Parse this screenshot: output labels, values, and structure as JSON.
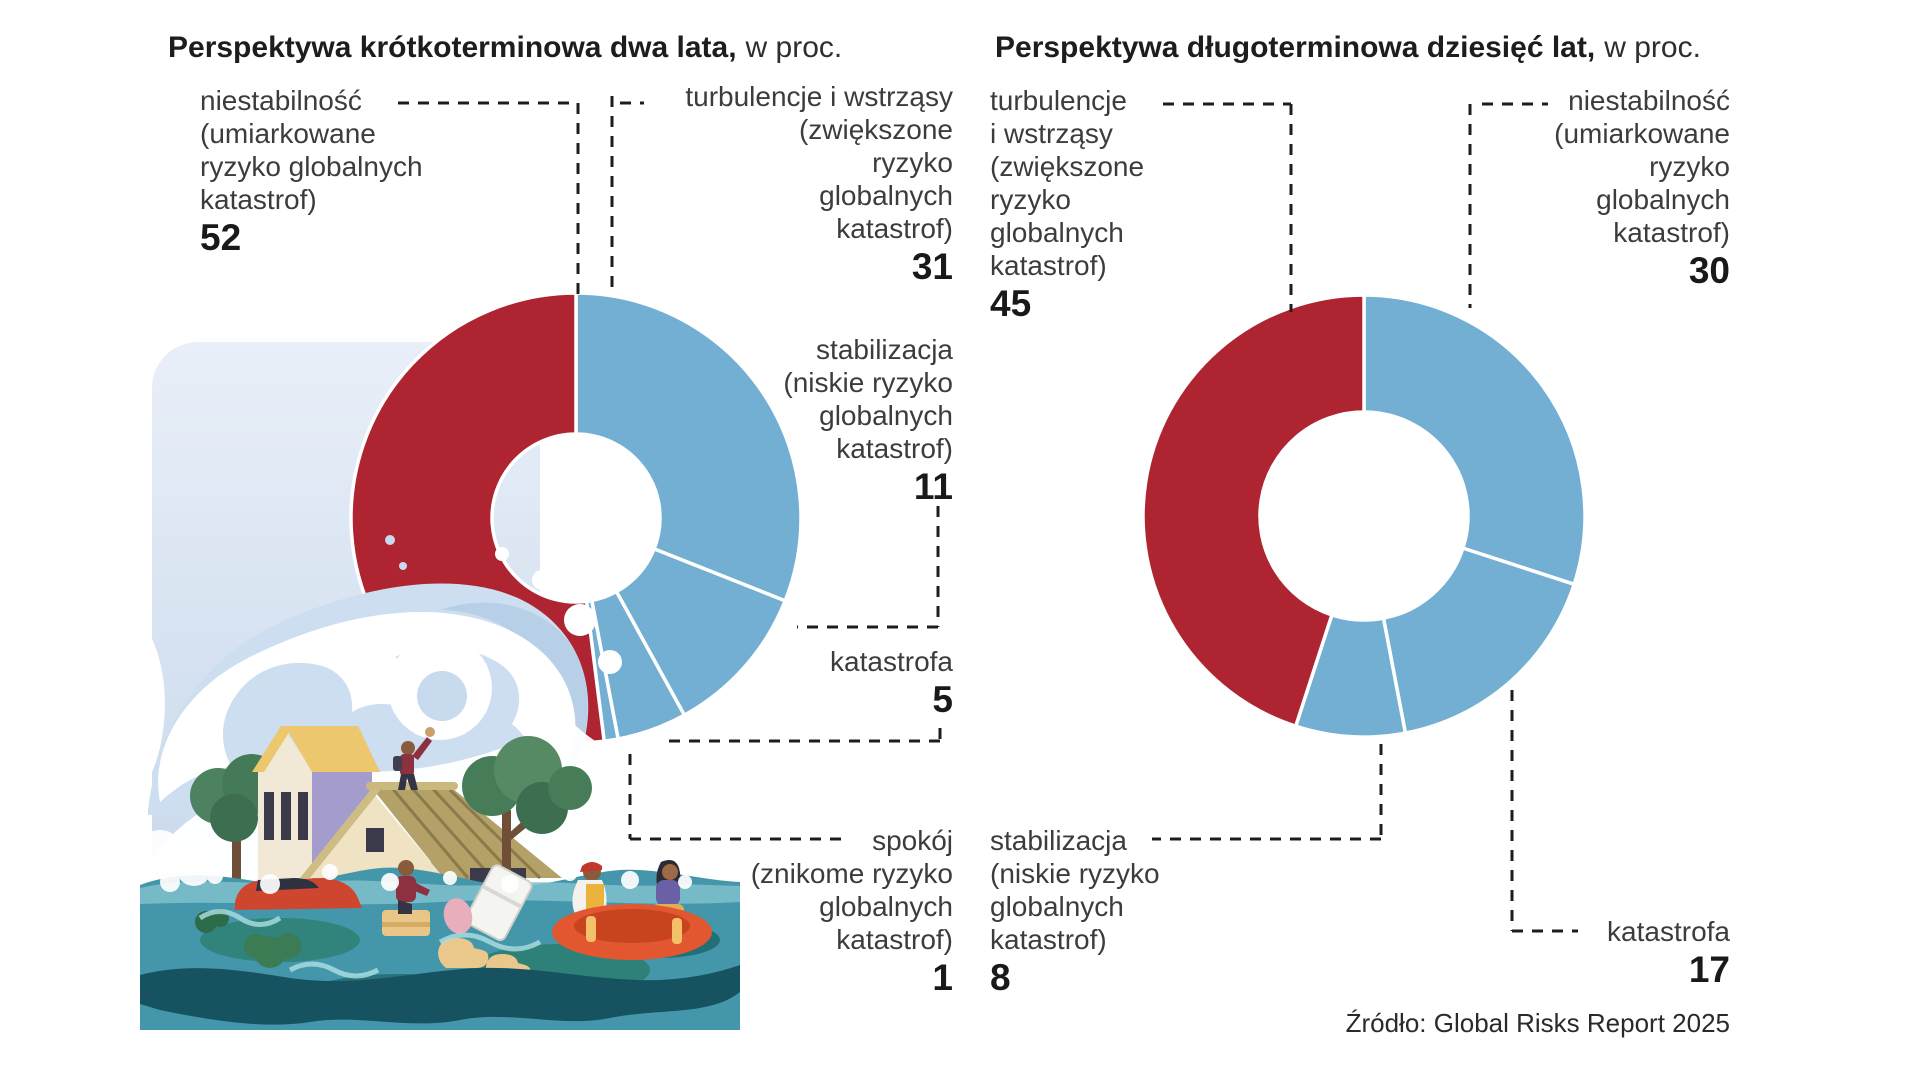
{
  "titles": {
    "left_bold": "Perspektywa krótkoterminowa dwa lata,",
    "left_unit": "w proc.",
    "right_bold": "Perspektywa długoterminowa dziesięć lat,",
    "right_unit": "w proc."
  },
  "source": "Źródło: Global Risks Report 2025",
  "colors": {
    "red": "#ae2430",
    "blue": "#73afd3",
    "leader": "#1d1d1b",
    "label_text": "#3c3c3c",
    "number_text": "#191919"
  },
  "left_chart": {
    "callouts": {
      "niestabilnosc": {
        "text": "niestabilność\n(umiarkowane\nryzyko globalnych\nkatastrof)",
        "value": "52"
      },
      "turbulencje": {
        "text": "turbulencje i wstrząsy\n(zwiększone\nryzyko\nglobalnych\nkatastrof)",
        "value": "31"
      },
      "stabilizacja": {
        "text": "stabilizacja\n(niskie ryzyko\nglobalnych\nkatastrof)",
        "value": "11"
      },
      "katastrofa": {
        "text": "katastrofa",
        "value": "5"
      },
      "spokoj": {
        "text": "spokój\n(znikome ryzyko\nglobalnych\nkatastrof)",
        "value": "1"
      }
    }
  },
  "right_chart": {
    "callouts": {
      "turbulencje": {
        "text": "turbulencje\ni wstrząsy\n(zwiększone\nryzyko\nglobalnych\nkatastrof)",
        "value": "45"
      },
      "niestabilnosc": {
        "text": "niestabilność\n(umiarkowane\nryzyko\nglobalnych\nkatastrof)",
        "value": "30"
      },
      "stabilizacja": {
        "text": "stabilizacja\n(niskie ryzyko\nglobalnych\nkatastrof)",
        "value": "8"
      },
      "katastrofa": {
        "text": "katastrofa",
        "value": "17"
      }
    }
  },
  "chart_data": [
    {
      "type": "pie",
      "variant": "donut",
      "title": "Perspektywa krótkoterminowa dwa lata, w proc.",
      "start_angle_deg": 0,
      "clockwise": true,
      "series": [
        {
          "key": "turbulencje",
          "name": "turbulencje i wstrząsy (zwiększone ryzyko globalnych katastrof)",
          "value": 31,
          "color": "#73afd3"
        },
        {
          "key": "stabilizacja",
          "name": "stabilizacja (niskie ryzyko globalnych katastrof)",
          "value": 11,
          "color": "#73afd3"
        },
        {
          "key": "katastrofa",
          "name": "katastrofa",
          "value": 5,
          "color": "#73afd3"
        },
        {
          "key": "spokoj",
          "name": "spokój (znikome ryzyko globalnych katastrof)",
          "value": 1,
          "color": "#73afd3"
        },
        {
          "key": "niestabilnosc",
          "name": "niestabilność (umiarkowane ryzyko globalnych katastrof)",
          "value": 52,
          "color": "#ae2430"
        }
      ]
    },
    {
      "type": "pie",
      "variant": "donut",
      "title": "Perspektywa długoterminowa dziesięć lat, w proc.",
      "start_angle_deg": 0,
      "clockwise": true,
      "series": [
        {
          "key": "niestabilnosc",
          "name": "niestabilność (umiarkowane ryzyko globalnych katastrof)",
          "value": 30,
          "color": "#73afd3"
        },
        {
          "key": "katastrofa",
          "name": "katastrofa",
          "value": 17,
          "color": "#73afd3"
        },
        {
          "key": "stabilizacja",
          "name": "stabilizacja (niskie ryzyko globalnych katastrof)",
          "value": 8,
          "color": "#73afd3"
        },
        {
          "key": "turbulencje",
          "name": "turbulencje i wstrząsy (zwiększone ryzyko globalnych katastrof)",
          "value": 45,
          "color": "#ae2430"
        }
      ]
    }
  ]
}
